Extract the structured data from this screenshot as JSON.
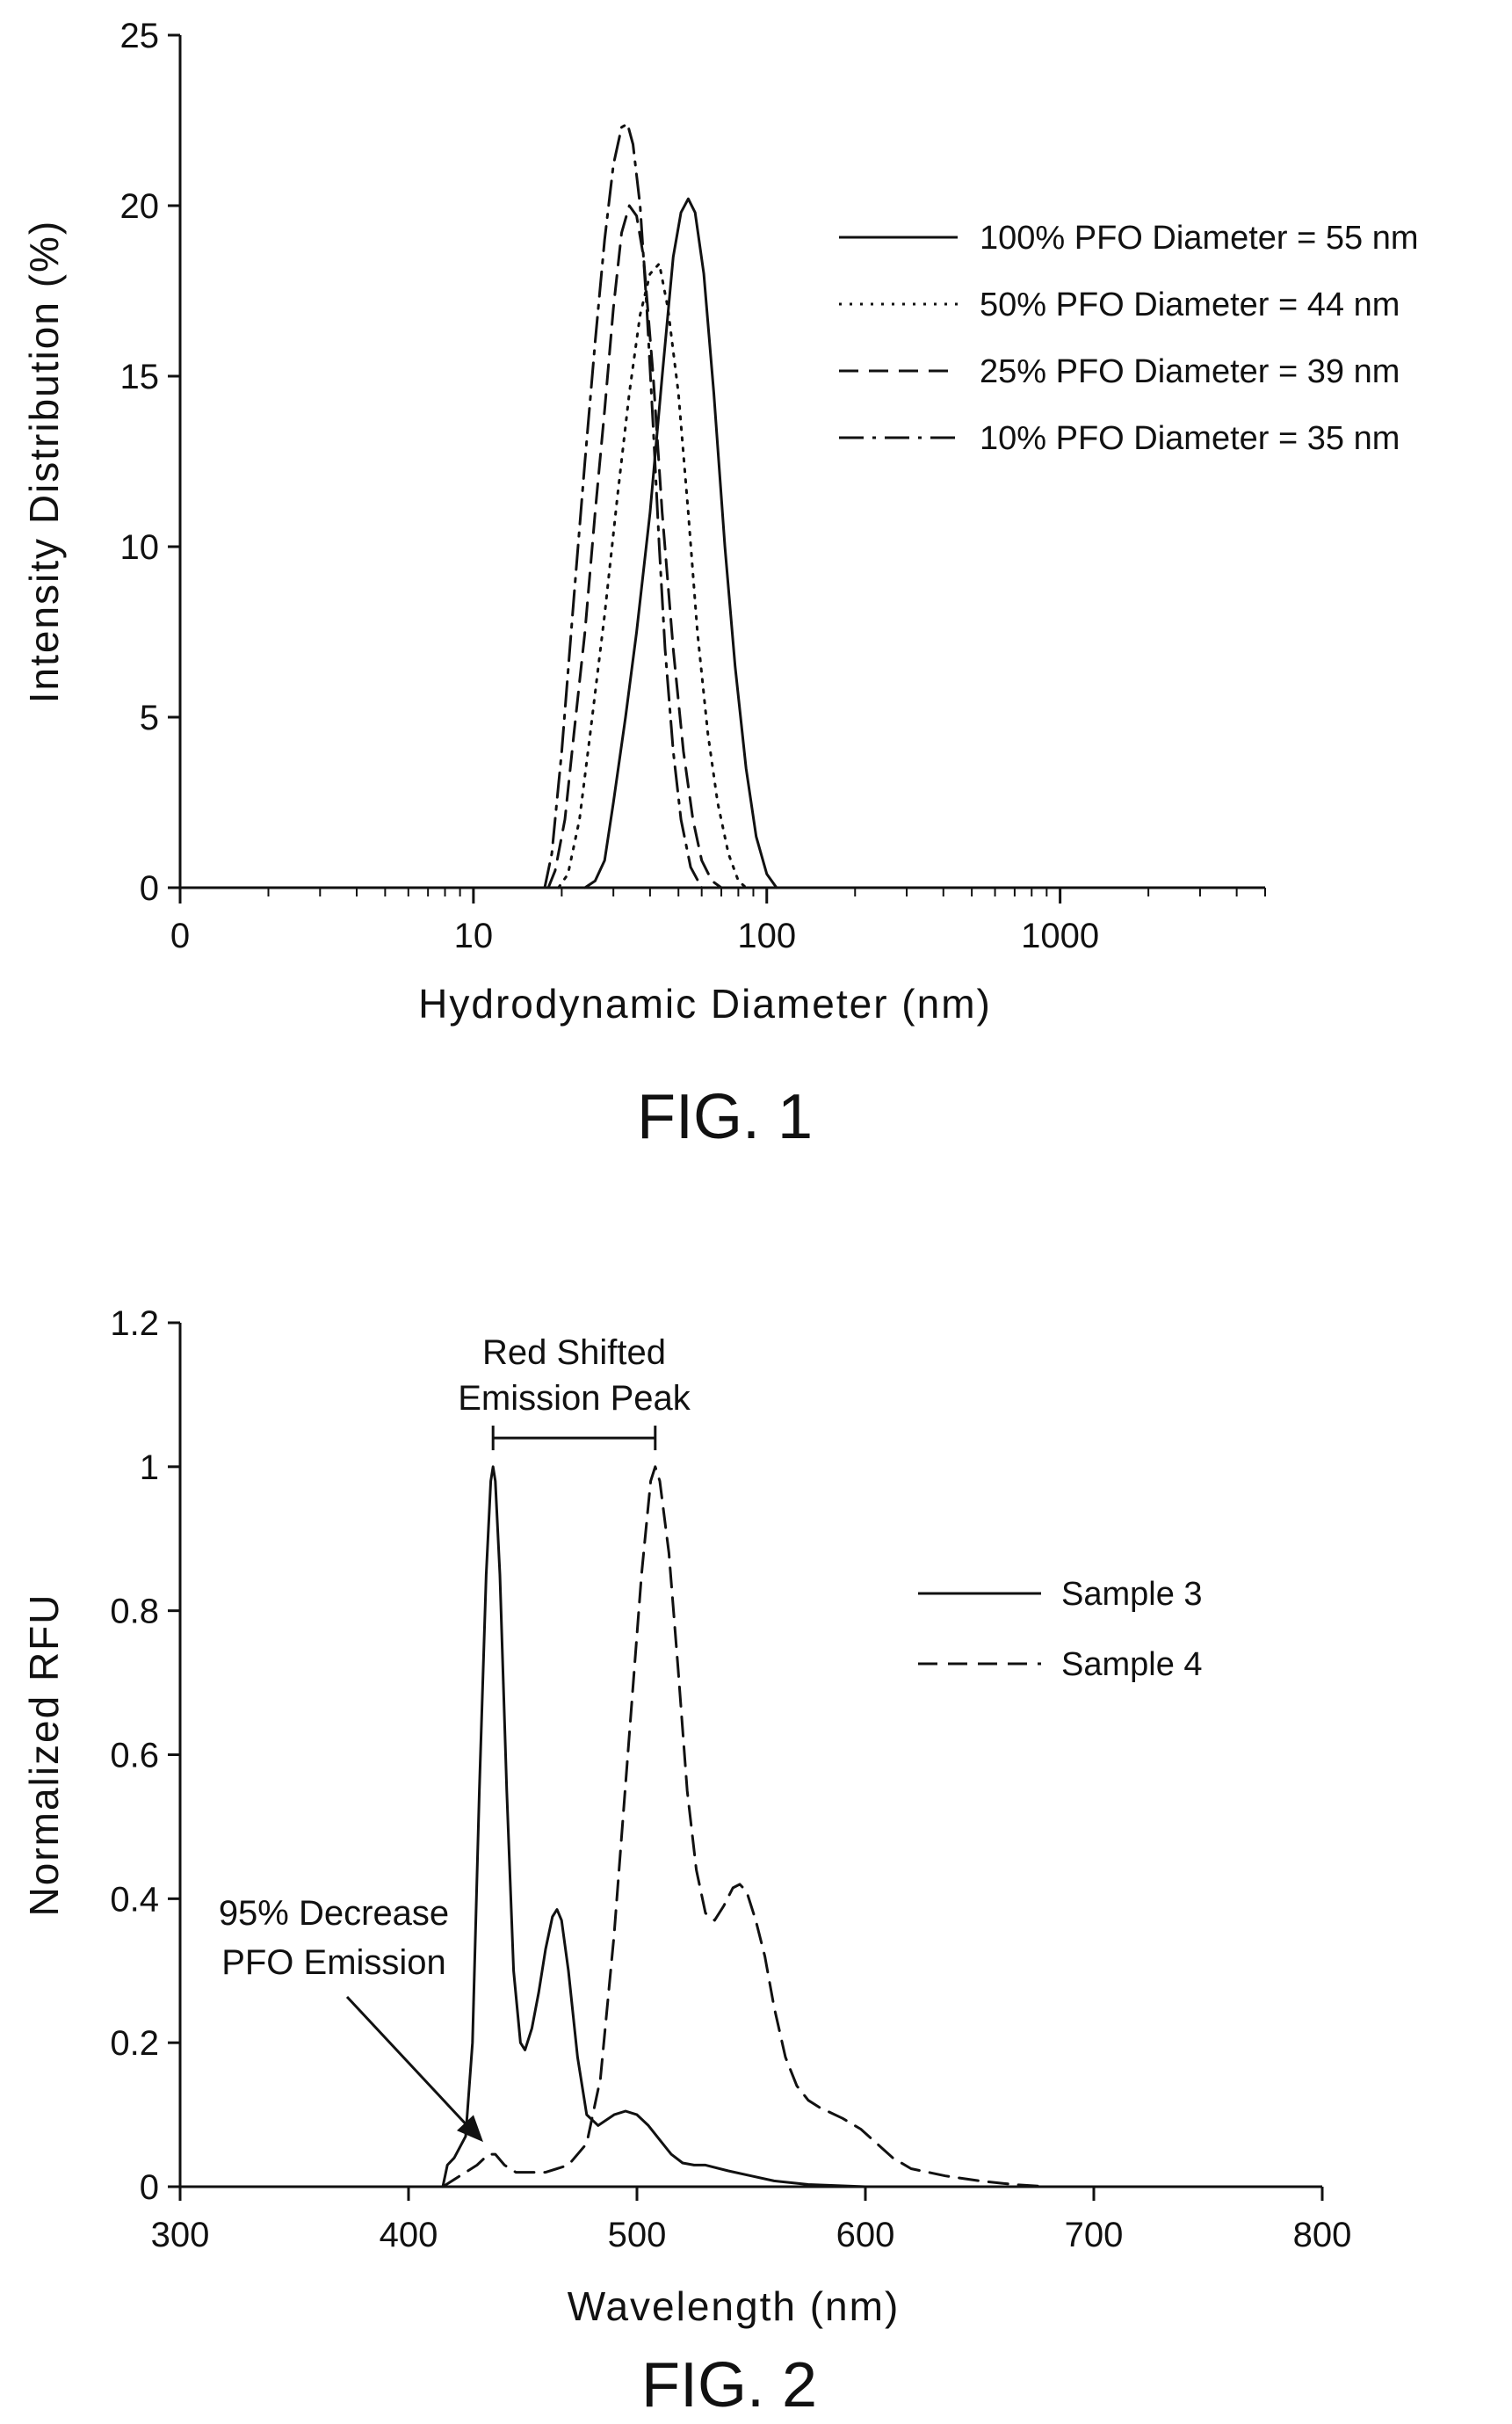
{
  "colors": {
    "ink": "#111111",
    "background": "#ffffff"
  },
  "chart_data": [
    {
      "type": "line",
      "figure_label": "FIG. 1",
      "title": "",
      "xlabel": "Hydrodynamic Diameter (nm)",
      "ylabel": "Intensity Distribution (%)",
      "xscale": "log",
      "xlim": [
        1,
        5000
      ],
      "ylim": [
        0,
        25
      ],
      "xticks": [
        {
          "v": 1,
          "label": "0"
        },
        {
          "v": 10,
          "label": "10"
        },
        {
          "v": 100,
          "label": "100"
        },
        {
          "v": 1000,
          "label": "1000"
        }
      ],
      "yticks": [
        0,
        5,
        10,
        15,
        20,
        25
      ],
      "grid": false,
      "legend_position": "top-right",
      "series": [
        {
          "name": "100% PFO Diameter = 55 nm",
          "dash": "solid",
          "points": [
            [
              24,
              0
            ],
            [
              26,
              0.2
            ],
            [
              28,
              0.8
            ],
            [
              30,
              2.5
            ],
            [
              33,
              5
            ],
            [
              36,
              7.5
            ],
            [
              40,
              11
            ],
            [
              44,
              15
            ],
            [
              48,
              18.5
            ],
            [
              51,
              19.8
            ],
            [
              54,
              20.2
            ],
            [
              57,
              19.8
            ],
            [
              61,
              18
            ],
            [
              66,
              14.5
            ],
            [
              72,
              10
            ],
            [
              78,
              6.5
            ],
            [
              85,
              3.5
            ],
            [
              92,
              1.5
            ],
            [
              100,
              0.4
            ],
            [
              108,
              0
            ]
          ]
        },
        {
          "name": "50% PFO Diameter = 44 nm",
          "dash": "dotted",
          "points": [
            [
              19.5,
              0
            ],
            [
              21,
              0.4
            ],
            [
              23,
              2
            ],
            [
              25,
              4.5
            ],
            [
              28,
              8
            ],
            [
              31,
              11.5
            ],
            [
              34,
              14.5
            ],
            [
              37,
              16.8
            ],
            [
              40,
              18
            ],
            [
              43,
              18.3
            ],
            [
              46,
              17
            ],
            [
              50,
              14.5
            ],
            [
              54,
              11
            ],
            [
              58,
              7.5
            ],
            [
              63,
              4.5
            ],
            [
              68,
              2.5
            ],
            [
              74,
              1
            ],
            [
              80,
              0.2
            ],
            [
              85,
              0
            ]
          ]
        },
        {
          "name": "25% PFO Diameter = 39 nm",
          "dash": "dashed",
          "points": [
            [
              18,
              0
            ],
            [
              19,
              0.5
            ],
            [
              20.5,
              2
            ],
            [
              22,
              4.5
            ],
            [
              24,
              7.5
            ],
            [
              26,
              11
            ],
            [
              28,
              14
            ],
            [
              30,
              17
            ],
            [
              32,
              19.2
            ],
            [
              34,
              20
            ],
            [
              36,
              19.7
            ],
            [
              38,
              18.5
            ],
            [
              41,
              15
            ],
            [
              44,
              11
            ],
            [
              48,
              7
            ],
            [
              52,
              4
            ],
            [
              56,
              2
            ],
            [
              60,
              0.8
            ],
            [
              65,
              0.2
            ],
            [
              70,
              0
            ]
          ]
        },
        {
          "name": "10% PFO Diameter = 35 nm",
          "dash": "dashdot",
          "points": [
            [
              17.5,
              0
            ],
            [
              18.5,
              1
            ],
            [
              20,
              4
            ],
            [
              22,
              8.5
            ],
            [
              24,
              12.5
            ],
            [
              26,
              16
            ],
            [
              28,
              19
            ],
            [
              30,
              21.2
            ],
            [
              32,
              22.3
            ],
            [
              33.5,
              22.4
            ],
            [
              35,
              21.8
            ],
            [
              37,
              20
            ],
            [
              39,
              17
            ],
            [
              41,
              13.5
            ],
            [
              43,
              10
            ],
            [
              45,
              7
            ],
            [
              48,
              4
            ],
            [
              51,
              2
            ],
            [
              55,
              0.6
            ],
            [
              60,
              0
            ]
          ]
        }
      ]
    },
    {
      "type": "line",
      "figure_label": "FIG. 2",
      "title": "",
      "xlabel": "Wavelength (nm)",
      "ylabel": "Normalized RFU",
      "xscale": "linear",
      "xlim": [
        300,
        800
      ],
      "ylim": [
        0,
        1.2
      ],
      "xticks": [
        300,
        400,
        500,
        600,
        700,
        800
      ],
      "yticks": [
        {
          "v": 0,
          "label": "0"
        },
        {
          "v": 0.2,
          "label": "0.2"
        },
        {
          "v": 0.4,
          "label": "0.4"
        },
        {
          "v": 0.6,
          "label": "0.6"
        },
        {
          "v": 0.8,
          "label": "0.8"
        },
        {
          "v": 1.0,
          "label": "1"
        },
        {
          "v": 1.2,
          "label": "1.2"
        }
      ],
      "grid": false,
      "legend_position": "top-right",
      "annotations": [
        {
          "text": [
            "Red Shifted",
            "Emission Peak"
          ],
          "type": "bracket",
          "x_from": 437,
          "x_to": 508,
          "y": 1.04
        },
        {
          "text": [
            "95% Decrease",
            "PFO Emission"
          ],
          "type": "arrow",
          "target_x": 435,
          "target_y": 0.045
        }
      ],
      "series": [
        {
          "name": "Sample 3",
          "dash": "solid",
          "points": [
            [
              415,
              0
            ],
            [
              417,
              0.03
            ],
            [
              420,
              0.04
            ],
            [
              425,
              0.07
            ],
            [
              428,
              0.2
            ],
            [
              431,
              0.55
            ],
            [
              434,
              0.85
            ],
            [
              436,
              0.98
            ],
            [
              437,
              1.0
            ],
            [
              438,
              0.98
            ],
            [
              440,
              0.85
            ],
            [
              443,
              0.55
            ],
            [
              446,
              0.3
            ],
            [
              449,
              0.2
            ],
            [
              451,
              0.19
            ],
            [
              454,
              0.22
            ],
            [
              457,
              0.27
            ],
            [
              460,
              0.33
            ],
            [
              463,
              0.375
            ],
            [
              465,
              0.385
            ],
            [
              467,
              0.37
            ],
            [
              470,
              0.3
            ],
            [
              474,
              0.18
            ],
            [
              478,
              0.1
            ],
            [
              483,
              0.085
            ],
            [
              490,
              0.1
            ],
            [
              495,
              0.105
            ],
            [
              500,
              0.1
            ],
            [
              505,
              0.085
            ],
            [
              510,
              0.065
            ],
            [
              515,
              0.045
            ],
            [
              520,
              0.033
            ],
            [
              525,
              0.03
            ],
            [
              530,
              0.03
            ],
            [
              540,
              0.022
            ],
            [
              550,
              0.015
            ],
            [
              560,
              0.008
            ],
            [
              575,
              0.003
            ],
            [
              600,
              0
            ]
          ]
        },
        {
          "name": "Sample 4",
          "dash": "dashed",
          "points": [
            [
              415,
              0
            ],
            [
              420,
              0.01
            ],
            [
              425,
              0.02
            ],
            [
              430,
              0.03
            ],
            [
              435,
              0.045
            ],
            [
              438,
              0.045
            ],
            [
              442,
              0.03
            ],
            [
              447,
              0.02
            ],
            [
              452,
              0.02
            ],
            [
              460,
              0.02
            ],
            [
              470,
              0.03
            ],
            [
              478,
              0.06
            ],
            [
              484,
              0.15
            ],
            [
              490,
              0.35
            ],
            [
              496,
              0.6
            ],
            [
              502,
              0.85
            ],
            [
              506,
              0.98
            ],
            [
              508,
              1.0
            ],
            [
              510,
              0.98
            ],
            [
              514,
              0.88
            ],
            [
              518,
              0.72
            ],
            [
              522,
              0.55
            ],
            [
              526,
              0.44
            ],
            [
              530,
              0.38
            ],
            [
              534,
              0.37
            ],
            [
              538,
              0.39
            ],
            [
              542,
              0.415
            ],
            [
              545,
              0.42
            ],
            [
              548,
              0.41
            ],
            [
              552,
              0.37
            ],
            [
              556,
              0.32
            ],
            [
              560,
              0.25
            ],
            [
              565,
              0.18
            ],
            [
              570,
              0.14
            ],
            [
              575,
              0.12
            ],
            [
              580,
              0.11
            ],
            [
              590,
              0.095
            ],
            [
              598,
              0.08
            ],
            [
              605,
              0.06
            ],
            [
              612,
              0.04
            ],
            [
              620,
              0.025
            ],
            [
              635,
              0.015
            ],
            [
              650,
              0.008
            ],
            [
              665,
              0.003
            ],
            [
              680,
              0
            ]
          ]
        }
      ]
    }
  ]
}
